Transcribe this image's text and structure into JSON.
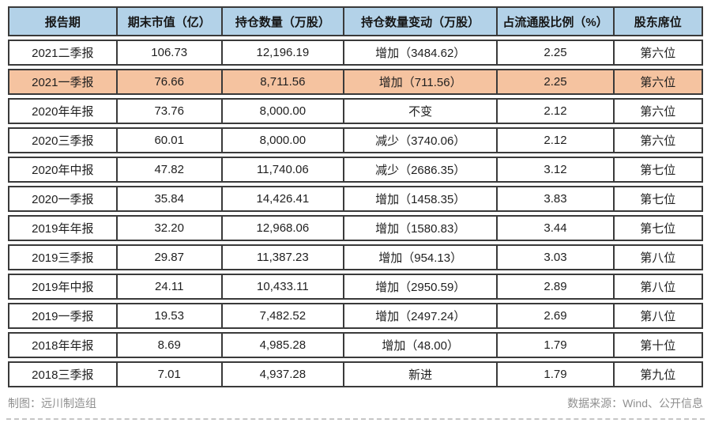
{
  "table": {
    "columns": [
      "报告期",
      "期末市值（亿）",
      "持仓数量（万股）",
      "持仓数量变动（万股）",
      "占流通股比例（%）",
      "股东席位"
    ],
    "rows": [
      {
        "period": "2021二季报",
        "market_value": "106.73",
        "shares": "12,196.19",
        "change": "增加（3484.62）",
        "ratio": "2.25",
        "seat": "第六位",
        "highlight": false
      },
      {
        "period": "2021一季报",
        "market_value": "76.66",
        "shares": "8,711.56",
        "change": "增加（711.56）",
        "ratio": "2.25",
        "seat": "第六位",
        "highlight": true
      },
      {
        "period": "2020年年报",
        "market_value": "73.76",
        "shares": "8,000.00",
        "change": "不变",
        "ratio": "2.12",
        "seat": "第六位",
        "highlight": false
      },
      {
        "period": "2020三季报",
        "market_value": "60.01",
        "shares": "8,000.00",
        "change": "减少（3740.06）",
        "ratio": "2.12",
        "seat": "第六位",
        "highlight": false
      },
      {
        "period": "2020年中报",
        "market_value": "47.82",
        "shares": "11,740.06",
        "change": "减少（2686.35）",
        "ratio": "3.12",
        "seat": "第七位",
        "highlight": false
      },
      {
        "period": "2020一季报",
        "market_value": "35.84",
        "shares": "14,426.41",
        "change": "增加（1458.35）",
        "ratio": "3.83",
        "seat": "第七位",
        "highlight": false
      },
      {
        "period": "2019年年报",
        "market_value": "32.20",
        "shares": "12,968.06",
        "change": "增加（1580.83）",
        "ratio": "3.44",
        "seat": "第七位",
        "highlight": false
      },
      {
        "period": "2019三季报",
        "market_value": "29.87",
        "shares": "11,387.23",
        "change": "增加（954.13）",
        "ratio": "3.03",
        "seat": "第八位",
        "highlight": false
      },
      {
        "period": "2019年中报",
        "market_value": "24.11",
        "shares": "10,433.11",
        "change": "增加（2950.59）",
        "ratio": "2.89",
        "seat": "第八位",
        "highlight": false
      },
      {
        "period": "2019一季报",
        "market_value": "19.53",
        "shares": "7,482.52",
        "change": "增加（2497.24）",
        "ratio": "2.69",
        "seat": "第八位",
        "highlight": false
      },
      {
        "period": "2018年年报",
        "market_value": "8.69",
        "shares": "4,985.28",
        "change": "增加（48.00）",
        "ratio": "1.79",
        "seat": "第十位",
        "highlight": false
      },
      {
        "period": "2018三季报",
        "market_value": "7.01",
        "shares": "4,937.28",
        "change": "新进",
        "ratio": "1.79",
        "seat": "第九位",
        "highlight": false
      }
    ]
  },
  "footer": {
    "credit": "制图：远川制造组",
    "source": "数据来源：Wind、公开信息"
  },
  "colors": {
    "header_bg": "#b3d2e8",
    "highlight_bg": "#f5c3a0",
    "border": "#3a3a3a"
  }
}
